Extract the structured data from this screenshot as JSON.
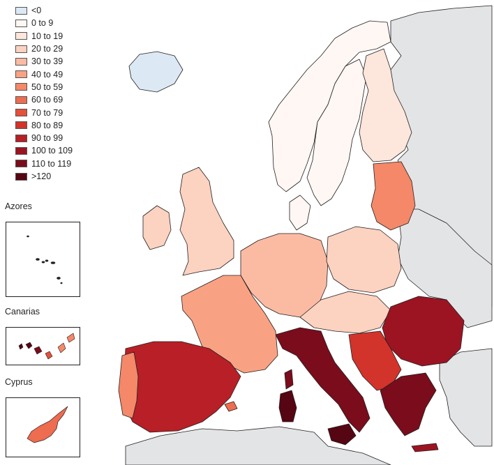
{
  "legend": {
    "items": [
      {
        "label": "<0",
        "color": "#dce9f5"
      },
      {
        "label": "0 to 9",
        "color": "#fff7f3"
      },
      {
        "label": "10 to 19",
        "color": "#fde6db"
      },
      {
        "label": "20 to 29",
        "color": "#fcd2c0"
      },
      {
        "label": "30 to 39",
        "color": "#fbbba3"
      },
      {
        "label": "40 to 49",
        "color": "#f9a283"
      },
      {
        "label": "50 to 59",
        "color": "#f48868"
      },
      {
        "label": "60 to 69",
        "color": "#ee6c4f"
      },
      {
        "label": "70 to 79",
        "color": "#e4503a"
      },
      {
        "label": "80 to 89",
        "color": "#d2332b"
      },
      {
        "label": "90 to 99",
        "color": "#b91f26"
      },
      {
        "label": "100 to 109",
        "color": "#9c1422"
      },
      {
        "label": "110 to 119",
        "color": "#7a0c1c"
      },
      {
        "label": ">120",
        "color": "#560513"
      }
    ]
  },
  "insets": {
    "azores": {
      "title": "Azores"
    },
    "canarias": {
      "title": "Canarias"
    },
    "cyprus": {
      "title": "Cyprus"
    }
  },
  "map_colors": {
    "sea": "#ffffff",
    "non_eu_land": "#e3e4e6",
    "border": "#231f20"
  }
}
